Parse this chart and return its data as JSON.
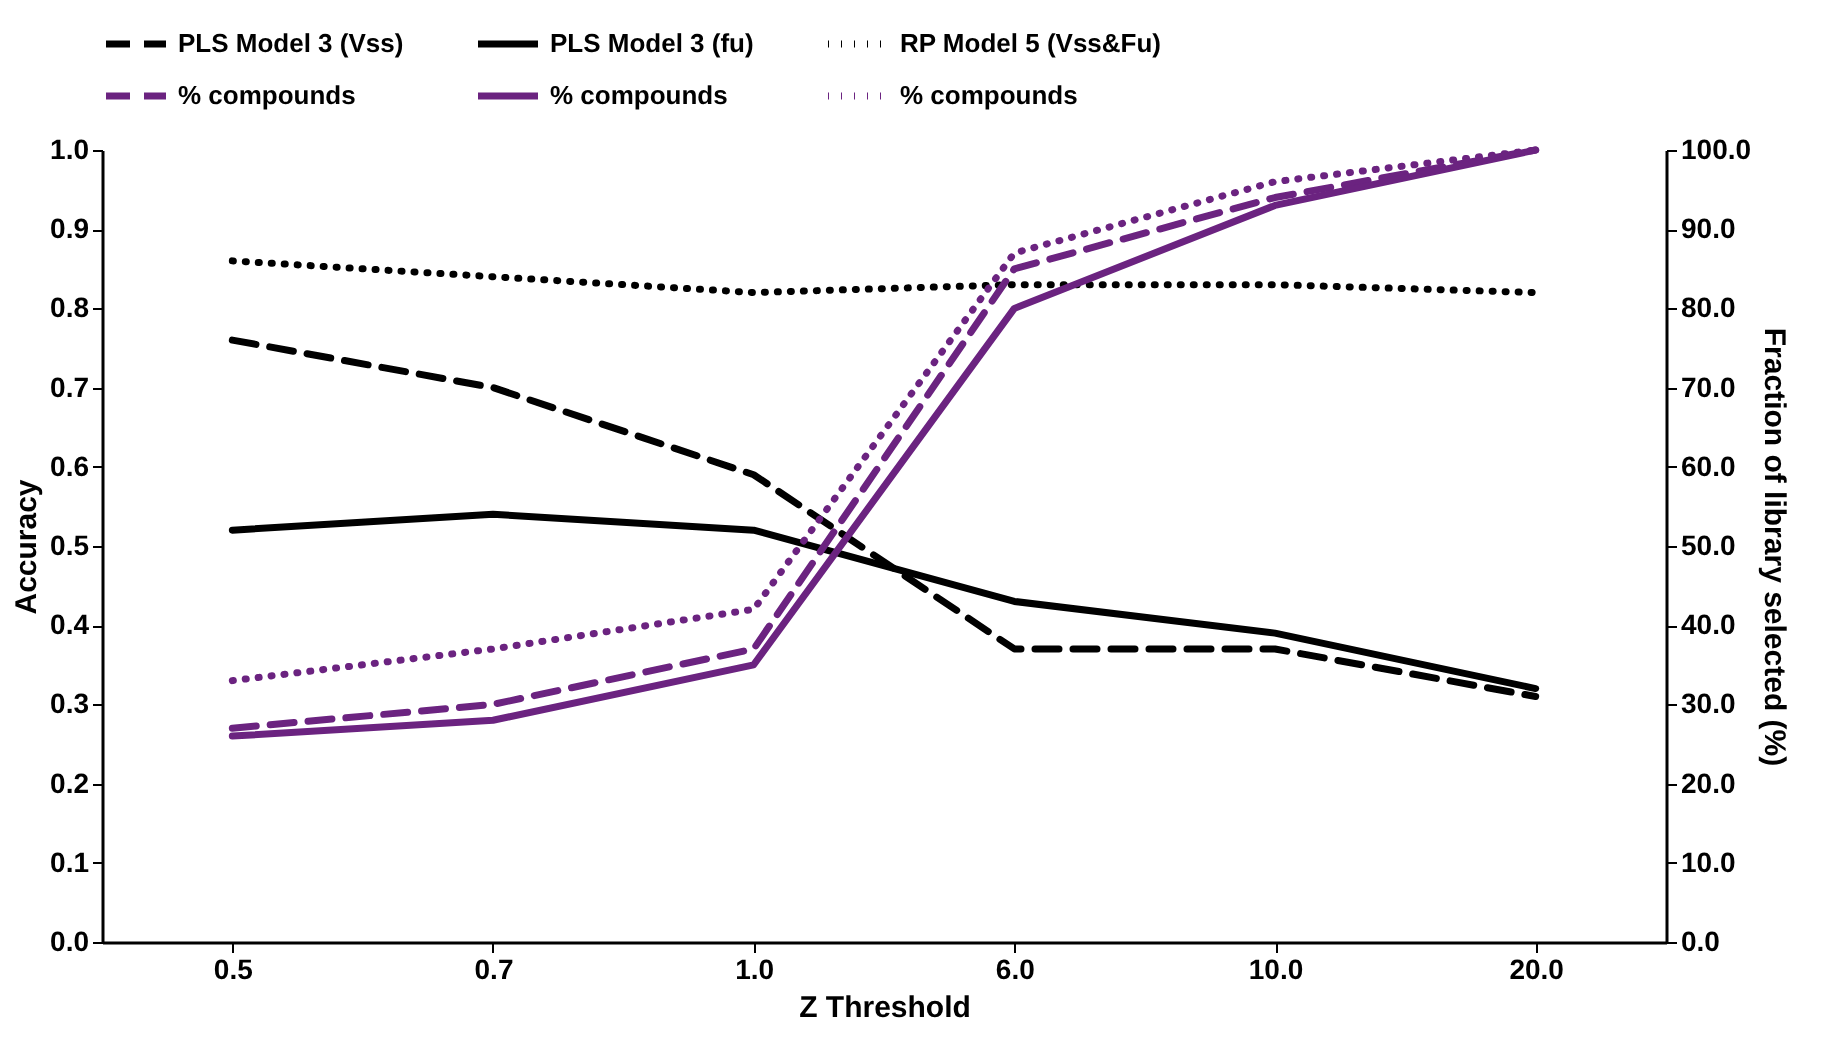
{
  "chart_data": {
    "type": "line",
    "xlabel": "Z Threshold",
    "ylabel": "Accuracy",
    "y2label": "Fraction of library selected (%)",
    "categories": [
      "0.5",
      "0.7",
      "1.0",
      "6.0",
      "10.0",
      "20.0"
    ],
    "ylim": [
      0,
      1
    ],
    "yticks": [
      {
        "value": 0,
        "label": "0.0"
      },
      {
        "value": 0.1,
        "label": "0.1"
      },
      {
        "value": 0.2,
        "label": "0.2"
      },
      {
        "value": 0.3,
        "label": "0.3"
      },
      {
        "value": 0.4,
        "label": "0.4"
      },
      {
        "value": 0.5,
        "label": "0.5"
      },
      {
        "value": 0.6,
        "label": "0.6"
      },
      {
        "value": 0.7,
        "label": "0.7"
      },
      {
        "value": 0.8,
        "label": "0.8"
      },
      {
        "value": 0.9,
        "label": "0.9"
      },
      {
        "value": 1,
        "label": "1.0"
      }
    ],
    "y2lim": [
      0,
      100
    ],
    "y2ticks": [
      {
        "value": 0,
        "label": "0.0"
      },
      {
        "value": 10,
        "label": "10.0"
      },
      {
        "value": 20,
        "label": "20.0"
      },
      {
        "value": 30,
        "label": "30.0"
      },
      {
        "value": 40,
        "label": "40.0"
      },
      {
        "value": 50,
        "label": "50.0"
      },
      {
        "value": 60,
        "label": "60.0"
      },
      {
        "value": 70,
        "label": "70.0"
      },
      {
        "value": 80,
        "label": "80.0"
      },
      {
        "value": 90,
        "label": "90.0"
      },
      {
        "value": 100,
        "label": "100.0"
      }
    ],
    "grid": false,
    "legend": "top",
    "marker": "none",
    "series": [
      {
        "name": "PLS Model 3 (Vss)",
        "color": "#000000",
        "line_style": "dashed",
        "values": [
          0.76,
          0.7,
          0.59,
          0.37,
          0.37,
          0.31
        ]
      },
      {
        "name": "PLS Model 3 (fu)",
        "color": "#000000",
        "line_style": "solid",
        "values": [
          0.52,
          0.54,
          0.52,
          0.43,
          0.39,
          0.32
        ]
      },
      {
        "name": "RP Model 5 (Vss&Fu)",
        "color": "#000000",
        "line_style": "dotted",
        "values": [
          0.86,
          0.84,
          0.82,
          0.83,
          0.83,
          0.82
        ]
      },
      {
        "name": "% compounds",
        "color": "#6b2380",
        "line_style": "dashed",
        "axis": "y2",
        "values": [
          27,
          30,
          37,
          85,
          94,
          100
        ]
      },
      {
        "name": "% compounds",
        "color": "#6b2380",
        "line_style": "solid",
        "axis": "y2",
        "values": [
          26,
          28,
          35,
          80,
          93,
          100
        ]
      },
      {
        "name": "% compounds",
        "color": "#6b2380",
        "line_style": "dotted",
        "axis": "y2",
        "values": [
          33,
          37,
          42,
          87,
          96,
          100
        ]
      }
    ]
  }
}
